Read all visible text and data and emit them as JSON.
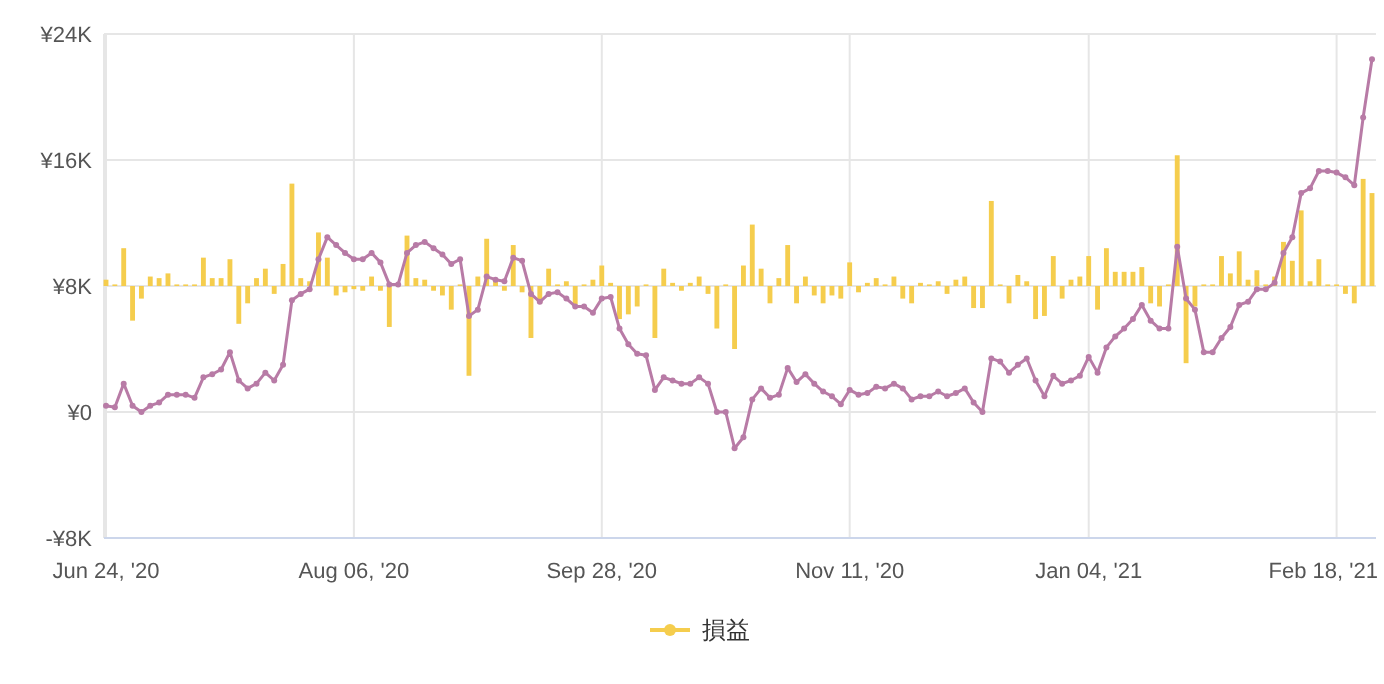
{
  "chart_data": {
    "type": "bar",
    "categories": [
      "Jun 24, '20",
      null,
      null,
      null,
      null,
      null,
      null,
      null,
      null,
      null,
      null,
      null,
      null,
      null,
      null,
      null,
      null,
      null,
      null,
      null,
      null,
      null,
      null,
      null,
      null,
      null,
      null,
      null,
      "Aug 06, '20",
      null,
      null,
      null,
      null,
      null,
      null,
      null,
      null,
      null,
      null,
      null,
      null,
      null,
      null,
      null,
      null,
      null,
      null,
      null,
      null,
      null,
      null,
      null,
      null,
      null,
      null,
      null,
      "Sep 28, '20",
      null,
      null,
      null,
      null,
      null,
      null,
      null,
      null,
      null,
      null,
      null,
      null,
      null,
      null,
      null,
      null,
      null,
      null,
      null,
      null,
      null,
      null,
      null,
      null,
      null,
      null,
      null,
      "Nov 11, '20",
      null,
      null,
      null,
      null,
      null,
      null,
      null,
      null,
      null,
      null,
      null,
      null,
      null,
      null,
      null,
      null,
      null,
      null,
      null,
      null,
      null,
      null,
      null,
      null,
      null,
      null,
      "Jan 04, '21",
      null,
      null,
      null,
      null,
      null,
      null,
      null,
      null,
      null,
      null,
      null,
      null,
      null,
      null,
      null,
      null,
      null,
      null,
      null,
      null,
      null,
      null,
      null,
      null,
      null,
      null,
      null,
      "Feb 18, '21",
      null,
      null,
      null,
      null
    ],
    "series": [
      {
        "name": "損益",
        "color": "#f5cd4d",
        "base": [
          8000,
          8000,
          8000,
          8000,
          8000,
          8000,
          8000,
          8000,
          8000,
          8000,
          8000,
          8000,
          8000,
          8000,
          8000,
          8000,
          8000,
          8000,
          8000,
          8000,
          8000,
          8000,
          8000,
          8000,
          8000,
          8000,
          8000,
          8000,
          8000,
          8000,
          8000,
          8000,
          8000,
          8000,
          8000,
          8000,
          8000,
          8000,
          8000,
          8000,
          8000,
          8000,
          8000,
          8000,
          8000,
          8000,
          8000,
          8000,
          8000,
          8000,
          8000,
          8000,
          8000,
          8000,
          8000,
          8000,
          8000,
          8000,
          8000,
          8000,
          8000,
          8000,
          8000,
          8000,
          8000,
          8000,
          8000,
          8000,
          8000,
          8000,
          8000,
          8000,
          8000,
          8000,
          8000,
          8000,
          8000,
          8000,
          8000,
          8000,
          8000,
          8000,
          8000,
          8000,
          8000,
          8000,
          8000,
          8000,
          8000,
          8000,
          8000,
          8000,
          8000,
          8000,
          8000,
          8000,
          8000,
          8000,
          8000,
          8000,
          8000,
          8000,
          8000,
          8000,
          8000,
          8000,
          8000,
          8000,
          8000,
          8000,
          8000,
          8000,
          8000,
          8000,
          8000,
          8000,
          8000,
          8000,
          8000,
          8000,
          8000,
          8000,
          8000,
          8000,
          8000,
          8000,
          8000,
          8000,
          8000,
          8000,
          8000,
          8000,
          8000,
          8000,
          8000,
          8000,
          8000,
          8000,
          8000,
          8000,
          8000,
          8000,
          8000,
          8000
        ],
        "values": [
          400,
          100,
          2400,
          -2200,
          -800,
          600,
          500,
          800,
          100,
          100,
          100,
          1800,
          500,
          500,
          1700,
          -2400,
          -1100,
          500,
          1100,
          -500,
          1400,
          6500,
          500,
          300,
          3400,
          1800,
          -600,
          -400,
          -200,
          -300,
          600,
          -300,
          -2600,
          100,
          3200,
          500,
          400,
          -300,
          -600,
          -1500,
          100,
          -5700,
          600,
          3000,
          400,
          -300,
          2600,
          -400,
          -3300,
          -1100,
          1100,
          100,
          300,
          -1200,
          100,
          400,
          1300,
          200,
          -2100,
          -1800,
          -1300,
          100,
          -3300,
          1100,
          200,
          -300,
          200,
          600,
          -500,
          -2700,
          100,
          -4000,
          1300,
          3900,
          1100,
          -1100,
          500,
          2600,
          -1100,
          600,
          -600,
          -1100,
          -600,
          -800,
          1500,
          -400,
          200,
          500,
          100,
          600,
          -800,
          -1100,
          200,
          100,
          300,
          -500,
          400,
          600,
          -1400,
          -1400,
          5400,
          100,
          -1100,
          700,
          300,
          -2100,
          -1900,
          1900,
          -800,
          400,
          600,
          1900,
          -1500,
          2400,
          900,
          900,
          900,
          1200,
          -1100,
          -1300,
          100,
          8300,
          -4900,
          -1300,
          100,
          100,
          1900,
          800,
          2200,
          400,
          1000,
          100,
          600,
          2800,
          1600,
          4800,
          300,
          1700,
          100,
          100,
          -500,
          -1100,
          6800,
          5900
        ]
      },
      {
        "type": "line",
        "color": "#b87ba6",
        "values": [
          400,
          300,
          1800,
          400,
          0,
          400,
          600,
          1100,
          1100,
          1100,
          900,
          2200,
          2400,
          2700,
          3800,
          2000,
          1500,
          1800,
          2500,
          2000,
          3000,
          7100,
          7500,
          7800,
          9700,
          11100,
          10600,
          10100,
          9700,
          9700,
          10100,
          9500,
          8100,
          8100,
          10100,
          10600,
          10800,
          10400,
          10000,
          9400,
          9700,
          6100,
          6500,
          8600,
          8400,
          8300,
          9800,
          9600,
          7500,
          7000,
          7500,
          7600,
          7200,
          6700,
          6700,
          6300,
          7200,
          7300,
          5300,
          4300,
          3700,
          3600,
          1400,
          2200,
          2000,
          1800,
          1800,
          2200,
          1800,
          0,
          0,
          -2300,
          -1600,
          800,
          1500,
          900,
          1100,
          2800,
          1900,
          2400,
          1800,
          1300,
          1000,
          500,
          1400,
          1100,
          1200,
          1600,
          1500,
          1800,
          1500,
          800,
          1000,
          1000,
          1300,
          1000,
          1200,
          1500,
          600,
          0,
          3400,
          3200,
          2500,
          3000,
          3400,
          2000,
          1000,
          2300,
          1800,
          2000,
          2300,
          3500,
          2500,
          4100,
          4800,
          5300,
          5900,
          6800,
          5800,
          5300,
          5300,
          10500,
          7200,
          6500,
          3800,
          3800,
          4700,
          5400,
          6800,
          7000,
          7800,
          7800,
          8200,
          10100,
          11100,
          13900,
          14200,
          15300,
          15300,
          15200,
          14900,
          14400,
          18700,
          22400
        ]
      }
    ],
    "ylim": [
      -8000,
      24000
    ],
    "yticks": [
      {
        "value": -8000,
        "label": "-¥8K"
      },
      {
        "value": 0,
        "label": "¥0"
      },
      {
        "value": 8000,
        "label": "¥8K"
      },
      {
        "value": 16000,
        "label": "¥16K"
      },
      {
        "value": 24000,
        "label": "¥24K"
      }
    ],
    "grid": true,
    "legend": "bottom",
    "marker": "circle",
    "line_style": "solid"
  }
}
